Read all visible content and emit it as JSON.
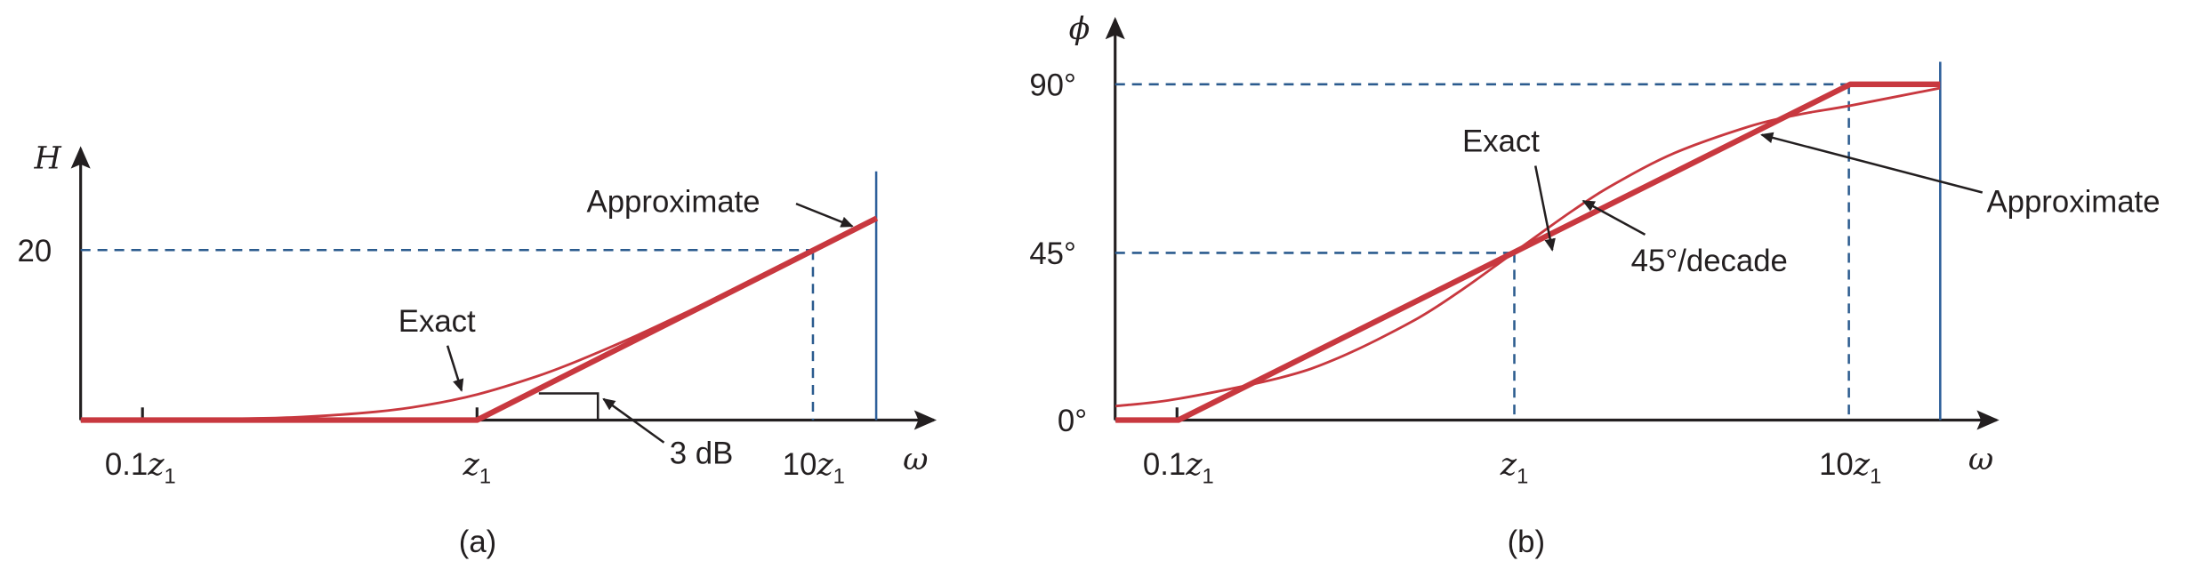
{
  "chart_data": [
    {
      "type": "line",
      "caption": "(a)",
      "ylabel": "H",
      "xlabel": "ω",
      "x_scale": "log",
      "y_ticks": [
        {
          "value": 20,
          "label": "20"
        }
      ],
      "x_ticks": [
        {
          "value": 0.1,
          "prefix": "0.1",
          "var": "z",
          "sub": "1"
        },
        {
          "value": 1,
          "prefix": "",
          "var": "z",
          "sub": "1"
        },
        {
          "value": 10,
          "prefix": "10",
          "var": "z",
          "sub": "1"
        }
      ],
      "series": [
        {
          "name": "Approximate",
          "x": [
            0.0665,
            1,
            15.4
          ],
          "y": [
            0,
            0,
            23.76
          ]
        },
        {
          "name": "Exact",
          "x": [
            0.0665,
            0.1,
            0.2,
            0.3,
            0.5,
            0.7,
            1,
            1.5,
            2,
            3,
            5,
            7,
            10,
            15.4
          ],
          "y": [
            0.02,
            0.04,
            0.17,
            0.37,
            0.97,
            1.73,
            3.01,
            5.12,
            6.99,
            10.0,
            14.15,
            17.0,
            20.04,
            23.76
          ]
        }
      ],
      "annotations": {
        "approximate": "Approximate",
        "exact": "Exact",
        "three_db": "3 dB"
      },
      "colors": {
        "curve": "#c8383f",
        "guide": "#2b5b8e"
      }
    },
    {
      "type": "line",
      "caption": "(b)",
      "ylabel": "ϕ",
      "xlabel": "ω",
      "x_scale": "log",
      "y_ticks": [
        {
          "value": 0,
          "label": "0°"
        },
        {
          "value": 45,
          "label": "45°"
        },
        {
          "value": 90,
          "label": "90°"
        }
      ],
      "x_ticks": [
        {
          "value": 0.1,
          "prefix": "0.1",
          "var": "z",
          "sub": "1"
        },
        {
          "value": 1,
          "prefix": "",
          "var": "z",
          "sub": "1"
        },
        {
          "value": 10,
          "prefix": "10",
          "var": "z",
          "sub": "1"
        }
      ],
      "series": [
        {
          "name": "Approximate",
          "x": [
            0.065,
            0.1,
            10,
            18.5
          ],
          "y": [
            0,
            0,
            90,
            90
          ]
        },
        {
          "name": "Exact",
          "x": [
            0.065,
            0.1,
            0.2,
            0.3,
            0.5,
            0.7,
            1,
            1.5,
            2,
            3,
            5,
            7,
            10,
            18.5
          ],
          "y": [
            3.72,
            5.71,
            11.31,
            16.7,
            26.57,
            34.99,
            45,
            56.31,
            63.43,
            71.57,
            78.69,
            81.87,
            84.29,
            89
          ]
        }
      ],
      "annotations": {
        "approximate": "Approximate",
        "exact": "Exact",
        "slope": "45°/decade"
      },
      "colors": {
        "curve": "#c8383f",
        "guide": "#2b5b8e"
      }
    }
  ]
}
